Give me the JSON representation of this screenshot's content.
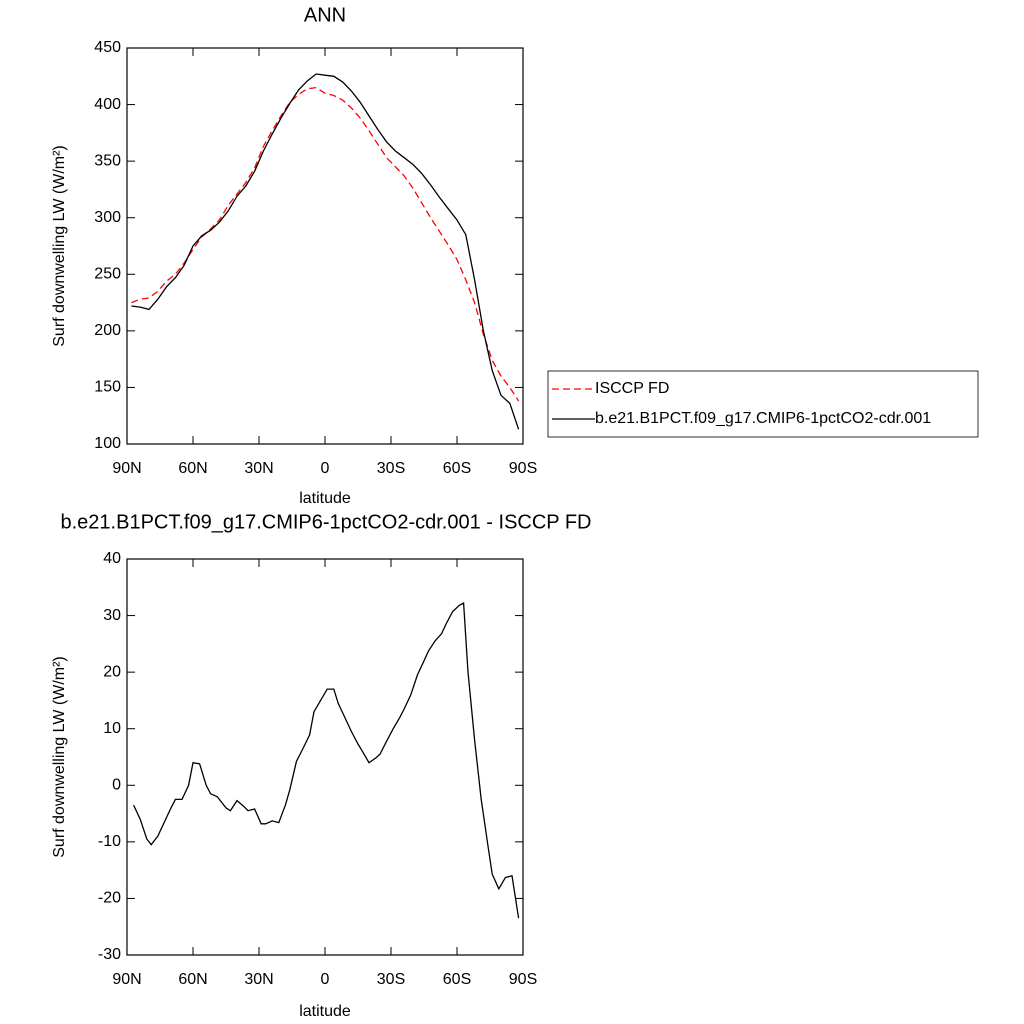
{
  "chart_data": [
    {
      "type": "line",
      "title": "ANN",
      "xlabel": "latitude",
      "ylabel": "Surf downwelling LW (W/m²)",
      "x": [
        88,
        84,
        80,
        76,
        72,
        68,
        64,
        60,
        56,
        52,
        48,
        44,
        40,
        36,
        32,
        28,
        24,
        20,
        16,
        12,
        8,
        4,
        0,
        -4,
        -8,
        -12,
        -16,
        -20,
        -24,
        -28,
        -32,
        -36,
        -40,
        -44,
        -48,
        -52,
        -56,
        -60,
        -64,
        -68,
        -72,
        -76,
        -80,
        -84,
        -88
      ],
      "series": [
        {
          "name": "ISCCP FD",
          "color": "#ff0000",
          "linestyle": "dashed",
          "values": [
            225,
            228,
            229,
            235,
            244,
            250,
            260,
            272,
            283,
            290,
            298,
            311,
            321,
            331,
            344,
            363,
            377,
            390,
            402,
            409,
            414,
            415,
            410,
            408,
            404,
            397,
            388,
            377,
            365,
            353,
            345,
            337,
            326,
            313,
            300,
            288,
            276,
            263,
            245,
            225,
            197,
            174,
            160,
            150,
            138
          ]
        },
        {
          "name": "b.e21.B1PCT.f09_g17.CMIP6-1pctCO2-cdr.001",
          "color": "#000000",
          "linestyle": "solid",
          "values": [
            222,
            221,
            219,
            228,
            239,
            247,
            258,
            275,
            284,
            289,
            296,
            306,
            319,
            328,
            341,
            359,
            374,
            388,
            401,
            413,
            421,
            427,
            426,
            425,
            420,
            412,
            402,
            390,
            378,
            367,
            359,
            353,
            347,
            339,
            329,
            318,
            308,
            298,
            285,
            245,
            200,
            165,
            143,
            136,
            113
          ]
        }
      ],
      "xlim": [
        90,
        -90
      ],
      "xticks": [
        {
          "value": 90,
          "label": "90N"
        },
        {
          "value": 60,
          "label": "60N"
        },
        {
          "value": 30,
          "label": "30N"
        },
        0,
        {
          "value": -30,
          "label": "30S"
        },
        {
          "value": -60,
          "label": "60S"
        },
        {
          "value": -90,
          "label": "90S"
        }
      ],
      "ylim": [
        100,
        450
      ],
      "yticks": [
        100,
        150,
        200,
        250,
        300,
        350,
        400,
        450
      ],
      "legend_position": "right"
    },
    {
      "type": "line",
      "title": "b.e21.B1PCT.f09_g17.CMIP6-1pctCO2-cdr.001 - ISCCP FD",
      "xlabel": "latitude",
      "ylabel": "Surf downwelling LW (W/m²)",
      "x": [
        87,
        84,
        81,
        79,
        76,
        70,
        68,
        65,
        62,
        60,
        57,
        54,
        52,
        49,
        45,
        43,
        40,
        37,
        35,
        32,
        29,
        27,
        24,
        21,
        18,
        16,
        13,
        10,
        7,
        5,
        2,
        -1,
        -4,
        -6,
        -9,
        -12,
        -15,
        -17,
        -20,
        -23,
        -25,
        -28,
        -31,
        -34,
        -36,
        -39,
        -42,
        -45,
        -47,
        -50,
        -53,
        -55,
        -58,
        -61,
        -63,
        -65,
        -68,
        -71,
        -74,
        -76,
        -79,
        -82,
        -85,
        -88
      ],
      "series": [
        {
          "color": "#000000",
          "linestyle": "solid",
          "values": [
            -3.5,
            -6,
            -9.5,
            -10.5,
            -9,
            -4,
            -2.5,
            -2.5,
            0,
            4,
            3.8,
            0,
            -1.5,
            -2,
            -4,
            -4.5,
            -2.7,
            -3.7,
            -4.5,
            -4.2,
            -6.8,
            -6.8,
            -6.3,
            -6.6,
            -3.5,
            -0.8,
            4.2,
            6.5,
            8.9,
            13,
            15,
            17,
            17,
            14.5,
            12,
            9.5,
            7.3,
            6,
            4,
            4.8,
            5.5,
            7.8,
            10,
            12,
            13.5,
            16,
            19.5,
            22,
            23.7,
            25.5,
            26.8,
            28.5,
            30.7,
            31.8,
            32.2,
            20,
            8,
            -2.5,
            -10.5,
            -15.7,
            -18.3,
            -16.3,
            -16,
            -23.5
          ]
        }
      ],
      "xlim": [
        90,
        -90
      ],
      "xticks": [
        {
          "value": 90,
          "label": "90N"
        },
        {
          "value": 60,
          "label": "60N"
        },
        {
          "value": 30,
          "label": "30N"
        },
        0,
        {
          "value": -30,
          "label": "30S"
        },
        {
          "value": -60,
          "label": "60S"
        },
        {
          "value": -90,
          "label": "90S"
        }
      ],
      "ylim": [
        -30,
        40
      ],
      "yticks": [
        -30,
        -20,
        -10,
        0,
        10,
        20,
        30,
        40
      ]
    }
  ]
}
